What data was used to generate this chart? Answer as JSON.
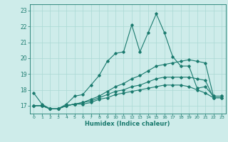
{
  "xlabel": "Humidex (Indice chaleur)",
  "ylabel": "",
  "bg_color": "#ceecea",
  "grid_color": "#aad8d4",
  "line_color": "#1a7a6e",
  "xlim": [
    -0.5,
    23.5
  ],
  "ylim": [
    16.5,
    23.4
  ],
  "yticks": [
    17,
    18,
    19,
    20,
    21,
    22,
    23
  ],
  "xticks": [
    0,
    1,
    2,
    3,
    4,
    5,
    6,
    7,
    8,
    9,
    10,
    11,
    12,
    13,
    14,
    15,
    16,
    17,
    18,
    19,
    20,
    21,
    22,
    23
  ],
  "line1_x": [
    0,
    1,
    2,
    3,
    4,
    5,
    6,
    7,
    8,
    9,
    10,
    11,
    12,
    13,
    14,
    15,
    16,
    17,
    18,
    19,
    20,
    21,
    22,
    23
  ],
  "line1_y": [
    17.8,
    17.1,
    16.8,
    16.8,
    17.1,
    17.6,
    17.7,
    18.3,
    18.9,
    19.8,
    20.3,
    20.4,
    22.1,
    20.4,
    21.6,
    22.8,
    21.6,
    20.1,
    19.5,
    19.5,
    18.1,
    18.2,
    17.6,
    17.6
  ],
  "line2_x": [
    0,
    1,
    2,
    3,
    4,
    5,
    6,
    7,
    8,
    9,
    10,
    11,
    12,
    13,
    14,
    15,
    16,
    17,
    18,
    19,
    20,
    21,
    22,
    23
  ],
  "line2_y": [
    17.0,
    17.0,
    16.8,
    16.8,
    17.0,
    17.1,
    17.2,
    17.4,
    17.6,
    17.9,
    18.2,
    18.4,
    18.7,
    18.9,
    19.2,
    19.5,
    19.6,
    19.7,
    19.8,
    19.9,
    19.8,
    19.7,
    17.6,
    17.6
  ],
  "line3_x": [
    0,
    1,
    2,
    3,
    4,
    5,
    6,
    7,
    8,
    9,
    10,
    11,
    12,
    13,
    14,
    15,
    16,
    17,
    18,
    19,
    20,
    21,
    22,
    23
  ],
  "line3_y": [
    17.0,
    17.0,
    16.8,
    16.8,
    17.0,
    17.1,
    17.2,
    17.3,
    17.5,
    17.7,
    17.9,
    18.0,
    18.2,
    18.3,
    18.5,
    18.7,
    18.8,
    18.8,
    18.8,
    18.8,
    18.7,
    18.6,
    17.5,
    17.5
  ],
  "line4_x": [
    0,
    1,
    2,
    3,
    4,
    5,
    6,
    7,
    8,
    9,
    10,
    11,
    12,
    13,
    14,
    15,
    16,
    17,
    18,
    19,
    20,
    21,
    22,
    23
  ],
  "line4_y": [
    17.0,
    17.0,
    16.8,
    16.8,
    17.0,
    17.1,
    17.1,
    17.2,
    17.4,
    17.5,
    17.7,
    17.8,
    17.9,
    18.0,
    18.1,
    18.2,
    18.3,
    18.3,
    18.3,
    18.2,
    18.0,
    17.8,
    17.5,
    17.5
  ]
}
